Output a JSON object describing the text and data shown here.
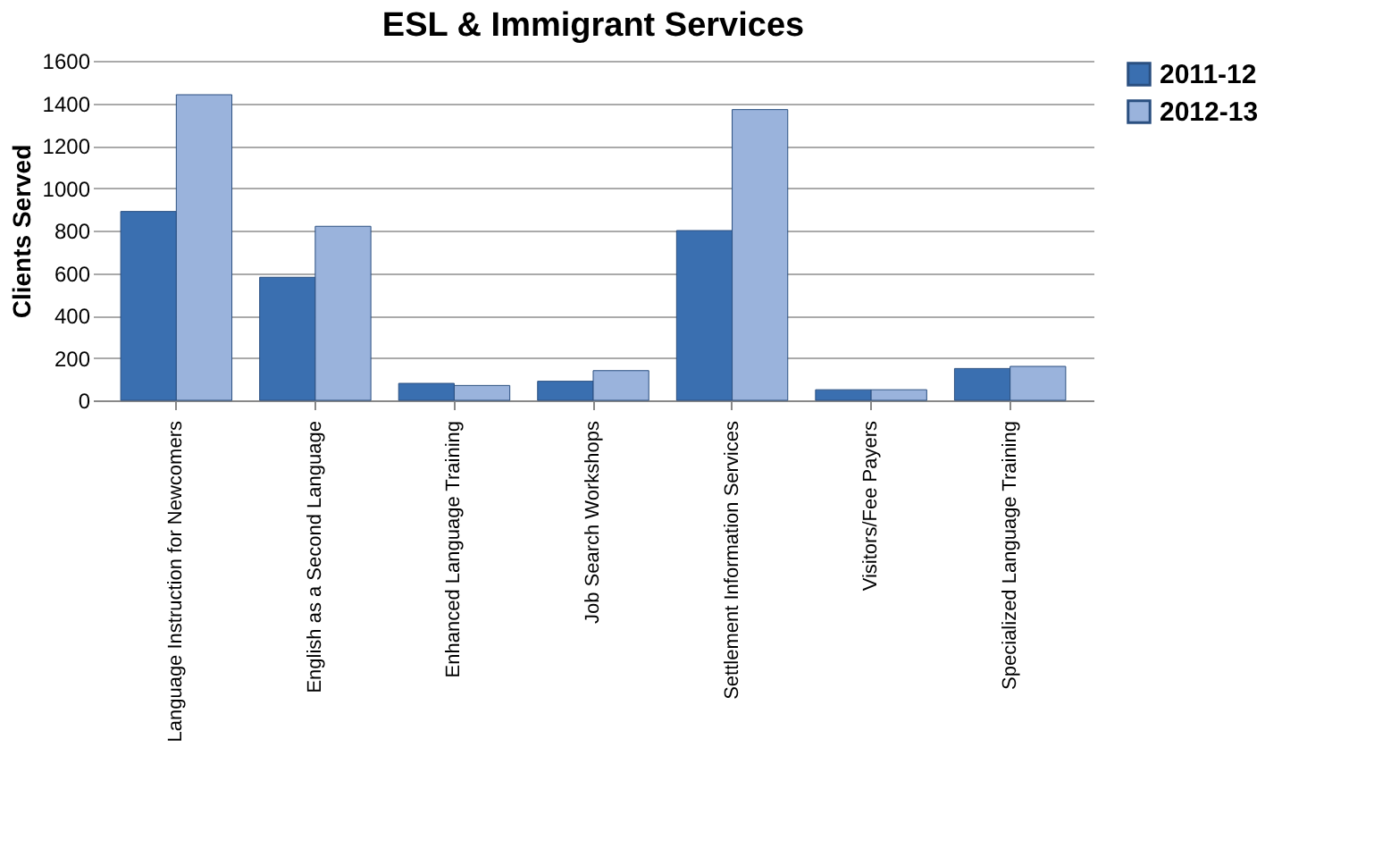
{
  "chart_data": {
    "type": "bar",
    "title": "ESL & Immigrant Services",
    "ylabel": "Clients Served",
    "categories": [
      "Language Instruction for Newcomers",
      "English as a Second Language",
      "Enhanced Language Training",
      "Job Search Workshops",
      "Settlement Information Services",
      "Visitors/Fee Payers",
      "Specialized Language Training"
    ],
    "series": [
      {
        "name": "2011-12",
        "color": "#3a6fb0",
        "values": [
          890,
          580,
          80,
          90,
          800,
          50,
          150
        ]
      },
      {
        "name": "2012-13",
        "color": "#9ab3dc",
        "values": [
          1440,
          820,
          70,
          140,
          1370,
          50,
          160
        ]
      }
    ],
    "ylim": [
      0,
      1600
    ],
    "yticks": [
      0,
      200,
      400,
      600,
      800,
      1000,
      1200,
      1400,
      1600
    ],
    "grid": "y",
    "legend": "right"
  }
}
